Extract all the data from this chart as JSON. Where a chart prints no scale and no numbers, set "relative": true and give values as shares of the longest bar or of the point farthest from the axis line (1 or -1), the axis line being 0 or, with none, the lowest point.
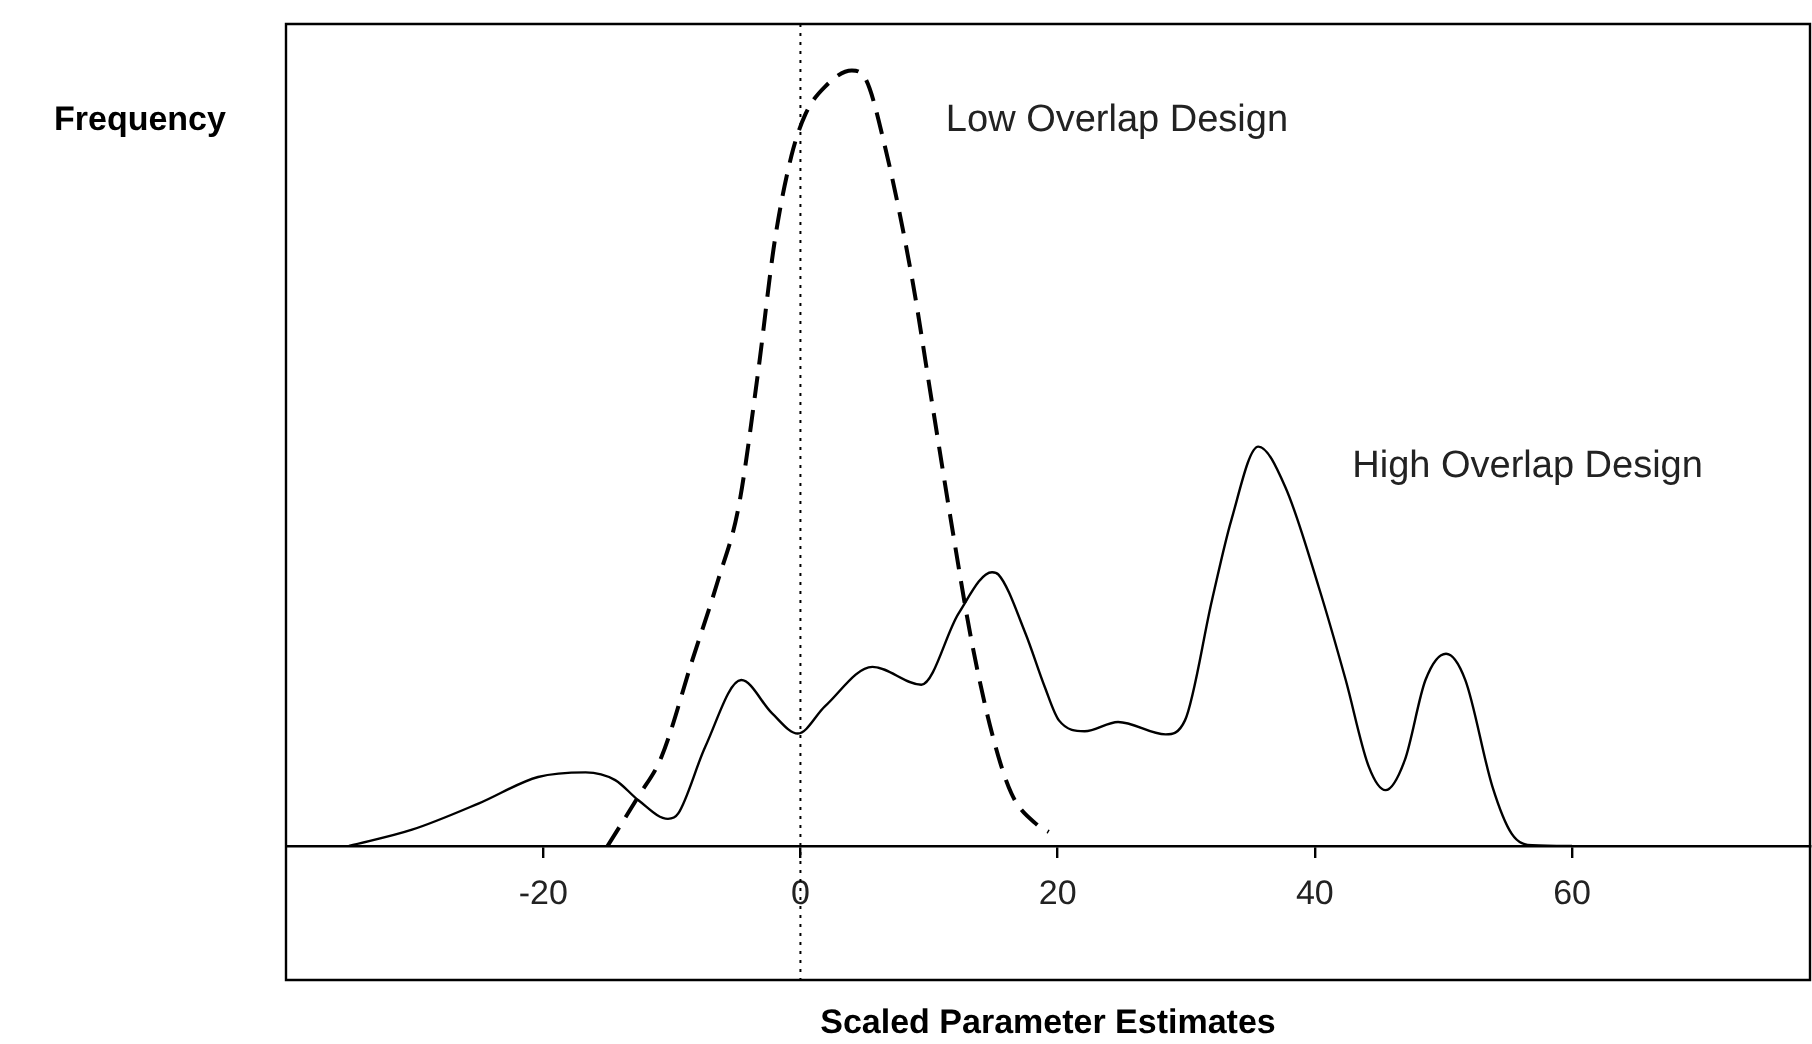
{
  "chart_data": {
    "type": "line",
    "xlabel": "Scaled Parameter Estimates",
    "ylabel": "Frequency",
    "relative": true,
    "xlim": [
      -40,
      78.5
    ],
    "xticks": [
      -20,
      0,
      20,
      40,
      60
    ],
    "tick_labels": "x",
    "grid": false,
    "legend": false,
    "marker": "none",
    "ref_lines": [
      {
        "axis": "x",
        "value": 0,
        "color": "#000000",
        "line_style": "dotted"
      }
    ],
    "series": [
      {
        "name": "Low Overlap Design",
        "color": "#000000",
        "line_style": "dashed",
        "x": [
          -15.0,
          -12.6,
          -10.8,
          -8.4,
          -6.4,
          -4.8,
          -3.3,
          -2.0,
          -0.7,
          0.4,
          1.9,
          4.0,
          5.0,
          6.6,
          8.7,
          10.2,
          11.8,
          13.3,
          14.9,
          16.4,
          18.5,
          19.3
        ],
        "values": [
          0,
          0.064,
          0.115,
          0.24,
          0.343,
          0.438,
          0.61,
          0.78,
          0.89,
          0.944,
          0.979,
          1,
          0.991,
          0.9,
          0.73,
          0.575,
          0.41,
          0.265,
          0.145,
          0.068,
          0.026,
          0.018
        ]
      },
      {
        "name": "High Overlap Design",
        "color": "#000000",
        "line_style": "solid",
        "x": [
          -35.1,
          -30.2,
          -25.0,
          -20.4,
          -16.7,
          -14.4,
          -12.6,
          -10.3,
          -9.5,
          -7.4,
          -4.6,
          -2.2,
          -0.2,
          1.9,
          5.6,
          9.4,
          12.3,
          14.9,
          15.4,
          17.5,
          19.0,
          20.1,
          22.1,
          24.7,
          28.4,
          29.9,
          32.0,
          33.5,
          35.6,
          37.7,
          40.3,
          42.4,
          44.2,
          45.5,
          47.0,
          48.6,
          50.2,
          51.7,
          53.8,
          55.3,
          56.9,
          60
        ],
        "values": [
          0,
          0.021,
          0.055,
          0.089,
          0.095,
          0.085,
          0.059,
          0.035,
          0.042,
          0.128,
          0.214,
          0.171,
          0.145,
          0.18,
          0.231,
          0.208,
          0.3,
          0.353,
          0.35,
          0.274,
          0.205,
          0.162,
          0.148,
          0.16,
          0.144,
          0.162,
          0.317,
          0.42,
          0.515,
          0.463,
          0.334,
          0.214,
          0.102,
          0.072,
          0.111,
          0.214,
          0.248,
          0.214,
          0.077,
          0.016,
          0.001,
          0
        ]
      }
    ]
  }
}
